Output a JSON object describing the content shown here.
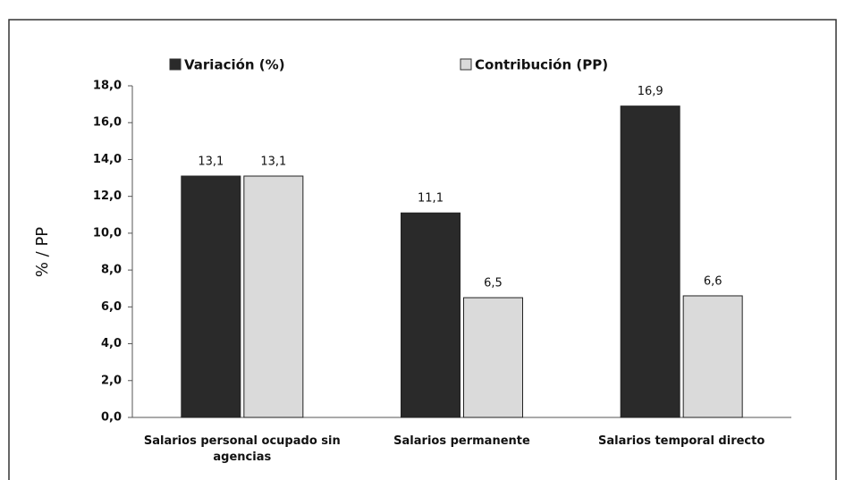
{
  "chart_data": {
    "type": "bar",
    "y_label": "% / PP",
    "categories": [
      "Salarios personal ocupado sin agencias",
      "Salarios permanente",
      "Salarios temporal directo"
    ],
    "series": [
      {
        "name": "Variación (%)",
        "color": "#2a2a2a",
        "values": [
          13.1,
          11.1,
          16.9
        ],
        "value_labels": [
          "13,1",
          "11,1",
          "16,9"
        ]
      },
      {
        "name": "Contribución (PP)",
        "color": "#dadada",
        "values": [
          13.1,
          6.5,
          6.6
        ],
        "value_labels": [
          "13,1",
          "6,5",
          "6,6"
        ]
      }
    ],
    "ylim": [
      0,
      18
    ],
    "yticks": [
      {
        "value": 0,
        "label": "0,0"
      },
      {
        "value": 2,
        "label": "2,0"
      },
      {
        "value": 4,
        "label": "4,0"
      },
      {
        "value": 6,
        "label": "6,0"
      },
      {
        "value": 8,
        "label": "8,0"
      },
      {
        "value": 10,
        "label": "10,0"
      },
      {
        "value": 12,
        "label": "12,0"
      },
      {
        "value": 14,
        "label": "14,0"
      },
      {
        "value": 16,
        "label": "16,0"
      },
      {
        "value": 18,
        "label": "18,0"
      }
    ],
    "legend": "top",
    "grid": false
  }
}
